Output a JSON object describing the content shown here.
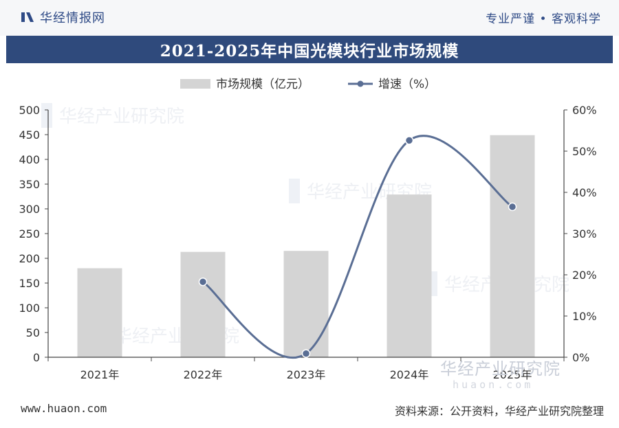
{
  "header": {
    "brand": "华经情报网",
    "slogan": "专业严谨 • 客观科学"
  },
  "watermark": {
    "text": "华经产业研究院",
    "url": "huaon.com"
  },
  "footer": {
    "website": "www.huaon.com",
    "source": "资料来源：公开资料，华经产业研究院整理"
  },
  "colors": {
    "bar": "#d4d4d4",
    "line": "#5a6e94",
    "title_bg": "#2f4a7c",
    "brand": "#2e4a86"
  },
  "chart_data": {
    "type": "bar",
    "title": "2021-2025年中国光模块行业市场规模",
    "categories": [
      "2021年",
      "2022年",
      "2023年",
      "2024年",
      "2025年"
    ],
    "legend_position": "top-center",
    "series": [
      {
        "name": "市场规模（亿元）",
        "type": "bar",
        "axis": "left",
        "values": [
          180,
          213,
          215,
          329,
          449
        ]
      },
      {
        "name": "增速（%）",
        "type": "line",
        "axis": "right",
        "smooth": true,
        "values": [
          null,
          18.3,
          0.9,
          52.6,
          36.5
        ]
      }
    ],
    "y_left": {
      "min": 0,
      "max": 500,
      "ticks": [
        "0",
        "50",
        "100",
        "150",
        "200",
        "250",
        "300",
        "350",
        "400",
        "450",
        "500"
      ]
    },
    "y_right": {
      "min": 0,
      "max": 60,
      "ticks": [
        "0%",
        "10%",
        "20%",
        "30%",
        "40%",
        "50%",
        "60%"
      ]
    },
    "grid": false
  }
}
